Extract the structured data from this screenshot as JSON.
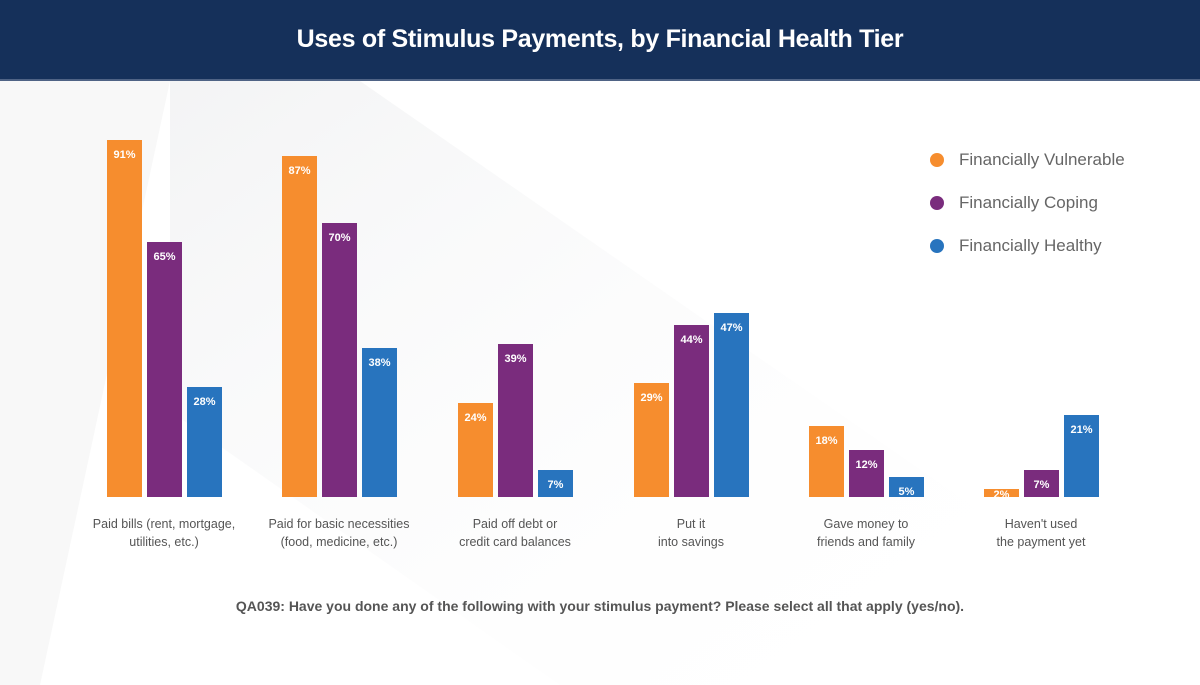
{
  "header": {
    "title": "Uses of Stimulus Payments, by Financial Health Tier"
  },
  "colors": {
    "vulnerable": "#f68d2e",
    "coping": "#7a2c7d",
    "healthy": "#2874be",
    "header_bg": "#15305a"
  },
  "legend": [
    {
      "label": "Financially Vulnerable",
      "color": "#f68d2e"
    },
    {
      "label": "Financially Coping",
      "color": "#7a2c7d"
    },
    {
      "label": "Financially Healthy",
      "color": "#2874be"
    }
  ],
  "categories": [
    {
      "line1": "Paid bills (rent, mortgage,",
      "line2": "utilities, etc.)"
    },
    {
      "line1": "Paid for basic necessities",
      "line2": "(food, medicine, etc.)"
    },
    {
      "line1": "Paid off debt or",
      "line2": "credit card balances"
    },
    {
      "line1": "Put it",
      "line2": "into savings"
    },
    {
      "line1": "Gave money to",
      "line2": "friends and family"
    },
    {
      "line1": "Haven't used",
      "line2": "the payment yet"
    }
  ],
  "labels": [
    [
      "91%",
      "65%",
      "28%"
    ],
    [
      "87%",
      "70%",
      "38%"
    ],
    [
      "24%",
      "39%",
      "7%"
    ],
    [
      "29%",
      "44%",
      "47%"
    ],
    [
      "18%",
      "12%",
      "5%"
    ],
    [
      "2%",
      "7%",
      "21%"
    ]
  ],
  "footnote": "QA039: Have you done any of the following with your stimulus payment? Please select all that apply (yes/no).",
  "chart_data": {
    "type": "bar",
    "title": "Uses of Stimulus Payments, by Financial Health Tier",
    "categories": [
      "Paid bills (rent, mortgage, utilities, etc.)",
      "Paid for basic necessities (food, medicine, etc.)",
      "Paid off debt or credit card balances",
      "Put it into savings",
      "Gave money to friends and family",
      "Haven't used the payment yet"
    ],
    "series": [
      {
        "name": "Financially Vulnerable",
        "color": "#f68d2e",
        "values": [
          91,
          87,
          24,
          29,
          18,
          2
        ]
      },
      {
        "name": "Financially Coping",
        "color": "#7a2c7d",
        "values": [
          65,
          70,
          39,
          44,
          12,
          7
        ]
      },
      {
        "name": "Financially Healthy",
        "color": "#2874be",
        "values": [
          28,
          38,
          7,
          47,
          5,
          21
        ]
      }
    ],
    "xlabel": "",
    "ylabel": "",
    "ylim": [
      0,
      100
    ],
    "grid": false,
    "legend_position": "top-right",
    "value_format": "percent",
    "annotation": "QA039: Have you done any of the following with your stimulus payment? Please select all that apply (yes/no)."
  }
}
